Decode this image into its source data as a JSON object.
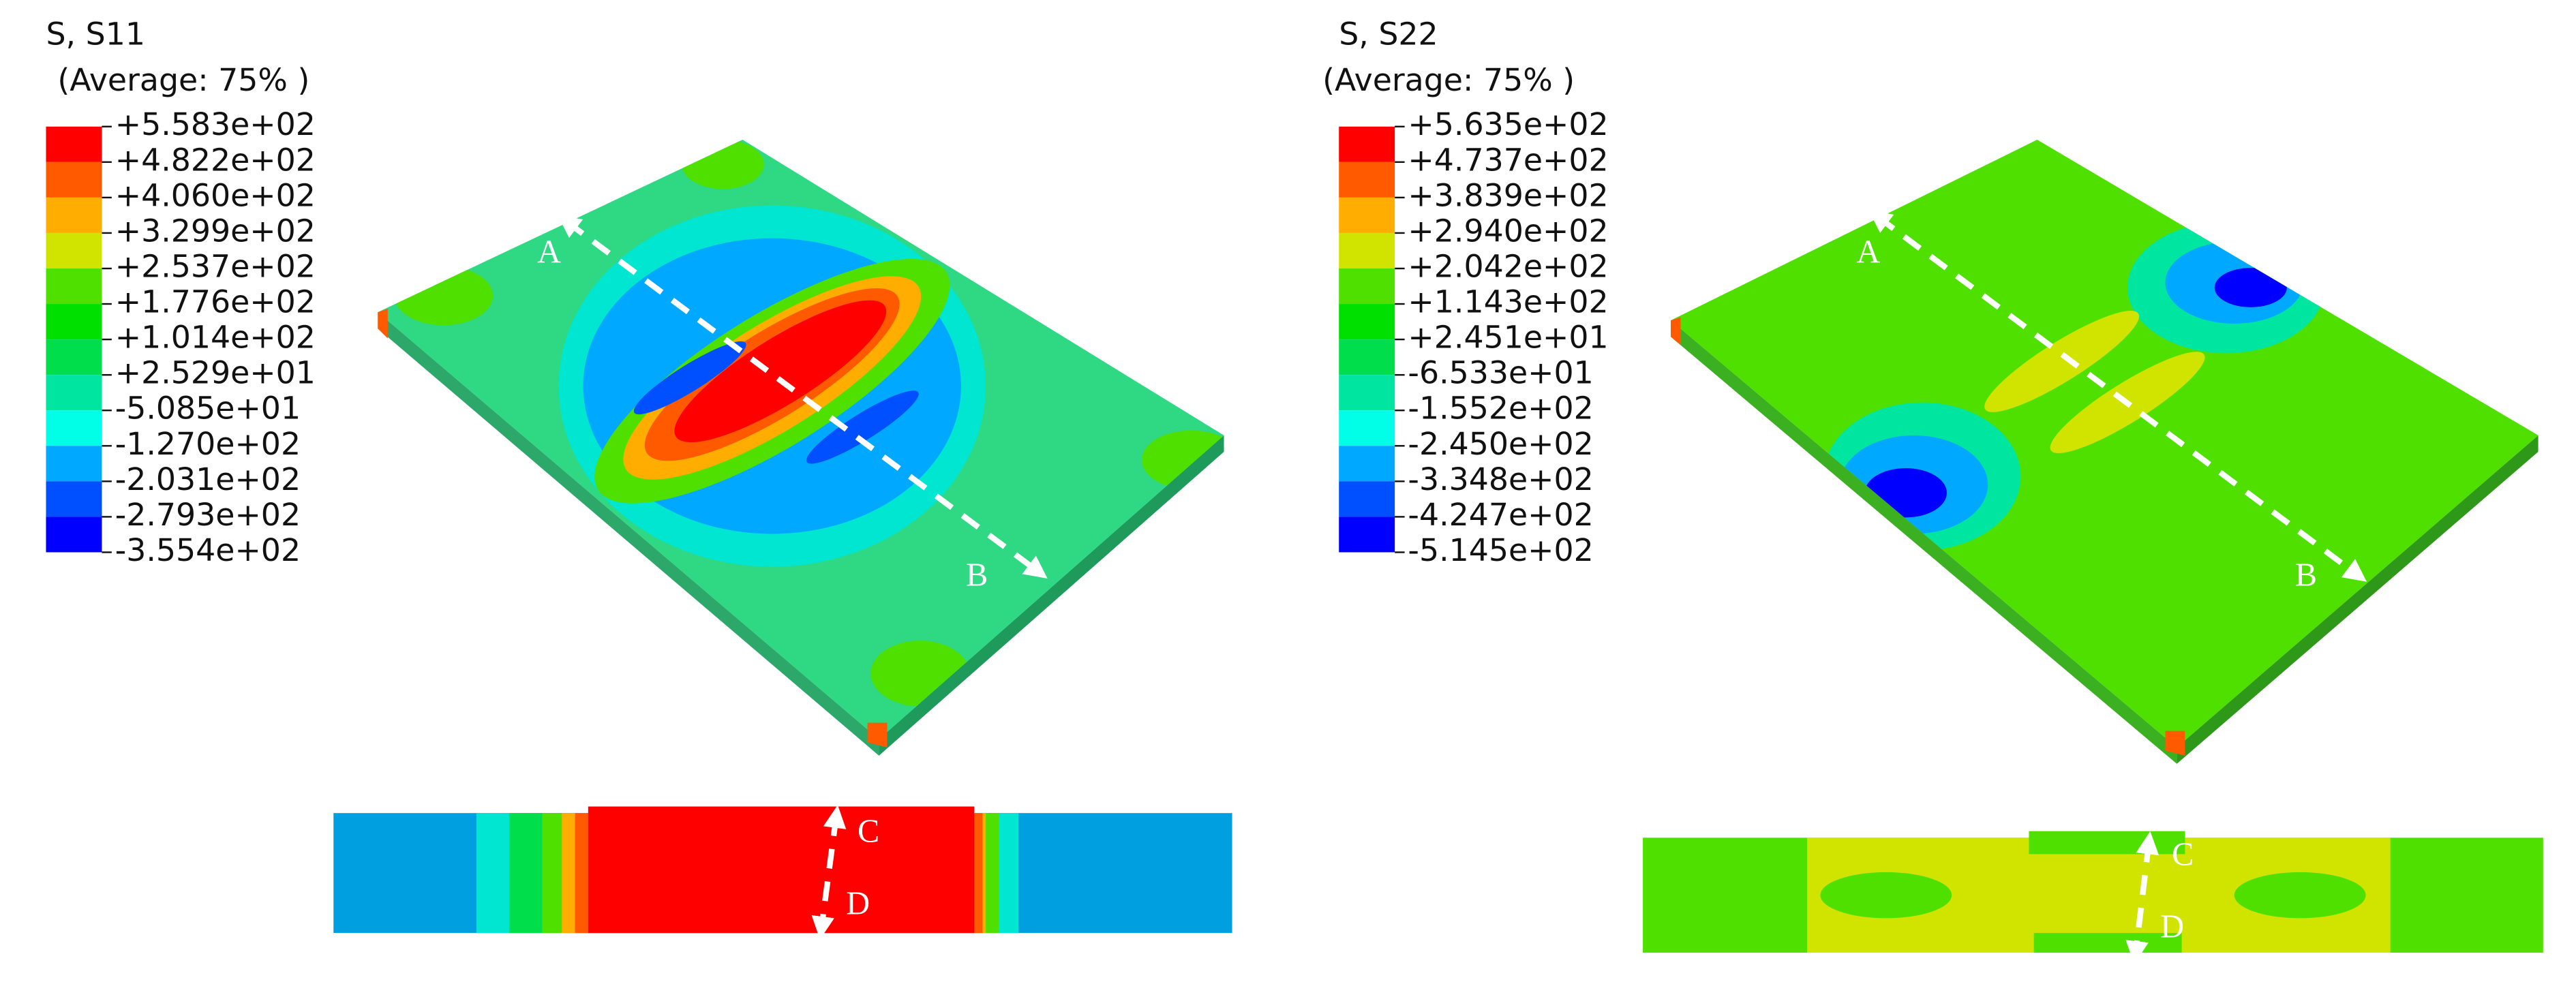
{
  "panels": [
    {
      "title": "S, S11",
      "subtitle": "(Average: 75% )",
      "legend": {
        "labels": [
          "+5.583e+02",
          "+4.822e+02",
          "+4.060e+02",
          "+3.299e+02",
          "+2.537e+02",
          "+1.776e+02",
          "+1.014e+02",
          "+2.529e+01",
          "-5.085e+01",
          "-1.270e+02",
          "-2.031e+02",
          "-2.793e+02",
          "-3.554e+02"
        ],
        "colors": [
          "#ff0000",
          "#ff5a00",
          "#ffad00",
          "#d0e400",
          "#4fe000",
          "#00e000",
          "#00df4b",
          "#00e6a0",
          "#00ffe6",
          "#00a8ff",
          "#0050ff",
          "#0000ff"
        ]
      },
      "points": [
        "A",
        "B",
        "C",
        "D"
      ]
    },
    {
      "title": "S, S22",
      "subtitle": "(Average: 75% )",
      "legend": {
        "labels": [
          "+5.635e+02",
          "+4.737e+02",
          "+3.839e+02",
          "+2.940e+02",
          "+2.042e+02",
          "+1.143e+02",
          "+2.451e+01",
          "-6.533e+01",
          "-1.552e+02",
          "-2.450e+02",
          "-3.348e+02",
          "-4.247e+02",
          "-5.145e+02"
        ],
        "colors": [
          "#ff0000",
          "#ff5a00",
          "#ffad00",
          "#d0e400",
          "#4fe000",
          "#00e000",
          "#00df4b",
          "#00e6a0",
          "#00ffe6",
          "#00a8ff",
          "#0050ff",
          "#0000ff"
        ]
      },
      "points": [
        "A",
        "B",
        "C",
        "D"
      ]
    }
  ]
}
